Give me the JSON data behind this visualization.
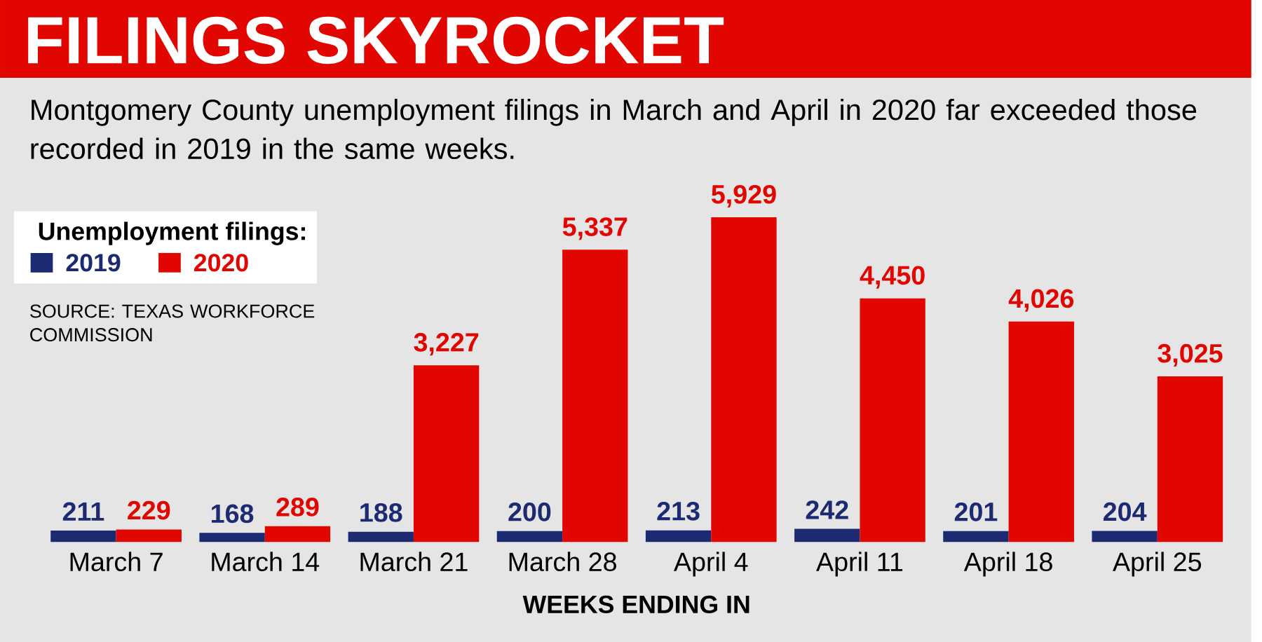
{
  "chart_data": {
    "type": "bar",
    "title": "FILINGS SKYROCKET",
    "subtitle": "Montgomery County unemployment filings in March and April in 2020 far exceeded those recorded in 2019 in the same weeks.",
    "xlabel": "WEEKS ENDING IN",
    "legend_title": "Unemployment filings:",
    "legend": "top left",
    "categories": [
      "March 7",
      "March 14",
      "March 21",
      "March 28",
      "April 4",
      "April 11",
      "April 18",
      "April 25"
    ],
    "series": [
      {
        "name": "2019",
        "color": "#1c2a72",
        "values": [
          211,
          168,
          188,
          200,
          213,
          242,
          201,
          204
        ],
        "value_labels": [
          "211",
          "168",
          "188",
          "200",
          "213",
          "242",
          "201",
          "204"
        ]
      },
      {
        "name": "2020",
        "color": "#e10600",
        "values": [
          229,
          289,
          3227,
          5337,
          5929,
          4450,
          4026,
          3025
        ],
        "value_labels": [
          "229",
          "289",
          "3,227",
          "5,337",
          "5,929",
          "4,450",
          "4,026",
          "3,025"
        ]
      }
    ],
    "annotations": [
      "SOURCE: TEXAS WORKFORCE COMMISSION"
    ]
  }
}
